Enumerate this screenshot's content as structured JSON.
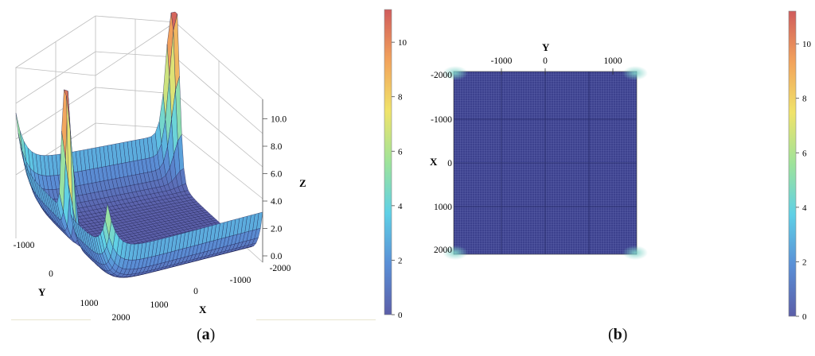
{
  "chart_data": [
    {
      "panel": "(a)",
      "type": "surface3d",
      "x_ticks": [
        "-2000",
        "-1000",
        "0",
        "1000",
        "2000"
      ],
      "y_ticks": [
        "-1000",
        "0",
        "1000",
        "2000"
      ],
      "z_ticks": [
        "0.0",
        "2.0",
        "4.0",
        "6.0",
        "8.0",
        "10.0"
      ],
      "xlabel": "X",
      "ylabel": "Y",
      "zlabel": "Z",
      "zlim": [
        0,
        11
      ],
      "peak_value": 11,
      "colorbar_ticks": [
        "0",
        "2",
        "4",
        "6",
        "8",
        "10"
      ],
      "colormap": [
        "#5b5ea8",
        "#5a8fd6",
        "#5fd0e6",
        "#9ee39a",
        "#f0e36a",
        "#f2a35c",
        "#d05c5c"
      ]
    },
    {
      "panel": "(b)",
      "type": "heatmap",
      "x_ticks": [
        "-2000",
        "-1000",
        "0",
        "1000",
        "2000"
      ],
      "y_ticks": [
        "-1000",
        "0",
        "1000"
      ],
      "xlabel": "X",
      "ylabel": "Y",
      "base_color": "#3b3f8a",
      "colorbar_ticks": [
        "0",
        "2",
        "4",
        "6",
        "8",
        "10"
      ],
      "colormap": [
        "#5b5ea8",
        "#5a8fd6",
        "#5fd0e6",
        "#9ee39a",
        "#f0e36a",
        "#f2a35c",
        "#d05c5c"
      ]
    }
  ],
  "captions": {
    "a": "a",
    "b": "b"
  }
}
